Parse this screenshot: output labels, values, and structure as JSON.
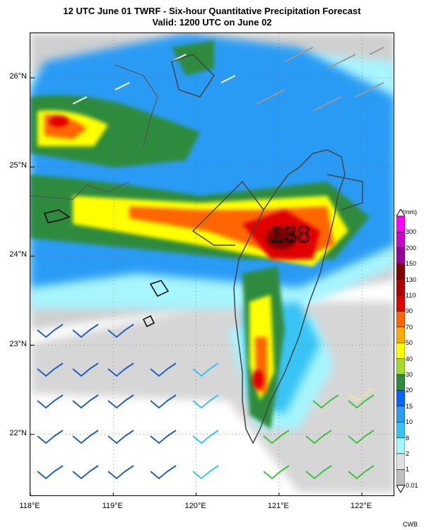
{
  "title": {
    "line1": "12 UTC June 01 TWRF - Six-hour Quantitative Precipitation Forecast",
    "line2": "Valid: 1200 UTC on June 02"
  },
  "map": {
    "lon_labels": [
      "118°E",
      "119°E",
      "120°E",
      "121°E",
      "122°E"
    ],
    "lat_labels": [
      "26°N",
      "25°N",
      "24°N",
      "23°N",
      "22°N"
    ],
    "lon_range": [
      118,
      122.4
    ],
    "lat_range": [
      21.3,
      26.5
    ],
    "max_value_label": "138",
    "max_value_lonlat": [
      121.15,
      24.25
    ]
  },
  "colorbar": {
    "unit": "(mm)",
    "levels": [
      "300",
      "200",
      "150",
      "130",
      "110",
      "90",
      "70",
      "50",
      "40",
      "30",
      "20",
      "15",
      "10",
      "8",
      "2",
      "1",
      "0.01"
    ],
    "colors": [
      "#ff00ff",
      "#cc00cc",
      "#990099",
      "#800000",
      "#b00000",
      "#e00000",
      "#ff6600",
      "#ffaa00",
      "#ffff00",
      "#a6d930",
      "#2e8b3c",
      "#0066ff",
      "#2b9bf4",
      "#37c4f4",
      "#a6f5ff",
      "#e0e0e0",
      "#bfbfbf"
    ]
  },
  "credit": "CWB"
}
